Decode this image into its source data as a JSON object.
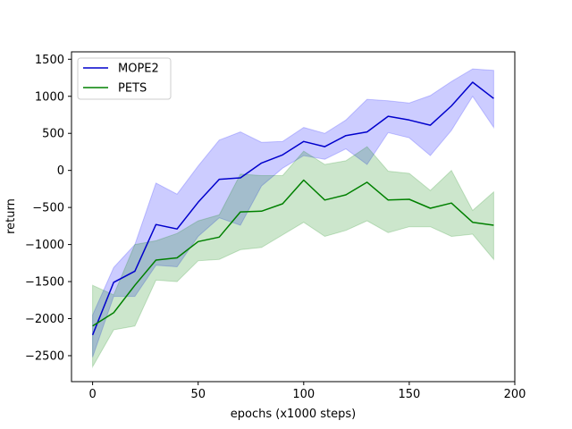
{
  "chart_data": {
    "type": "line",
    "title": "",
    "xlabel": "epochs (x1000 steps)",
    "ylabel": "return",
    "xlim": [
      -10,
      200
    ],
    "ylim": [
      -2850,
      1600
    ],
    "xticks": [
      0,
      50,
      100,
      150,
      200
    ],
    "xtick_labels": [
      "0",
      "50",
      "100",
      "150",
      "200"
    ],
    "yticks": [
      -2500,
      -2000,
      -1500,
      -1000,
      -500,
      0,
      500,
      1000,
      1500
    ],
    "ytick_labels": [
      "−2500",
      "−2000",
      "−1500",
      "−1000",
      "−500",
      "0",
      "500",
      "1000",
      "1500"
    ],
    "grid": false,
    "legend_position": "top-left",
    "x": [
      0,
      10,
      20,
      30,
      40,
      50,
      60,
      70,
      80,
      90,
      100,
      110,
      120,
      130,
      140,
      150,
      160,
      170,
      180,
      190
    ],
    "series": [
      {
        "name": "MOPE2",
        "color": "#0000cc",
        "fill_color": "#0000ff",
        "values": [
          -2220,
          -1510,
          -1360,
          -730,
          -790,
          -430,
          -120,
          -100,
          100,
          210,
          390,
          320,
          470,
          520,
          730,
          680,
          610,
          870,
          1190,
          970
        ],
        "upper": [
          -1950,
          -1310,
          -1000,
          -170,
          -320,
          60,
          410,
          520,
          380,
          390,
          580,
          500,
          680,
          960,
          940,
          910,
          1010,
          1200,
          1370,
          1350
        ],
        "lower": [
          -2520,
          -1700,
          -1700,
          -1280,
          -1300,
          -890,
          -640,
          -740,
          -210,
          30,
          200,
          150,
          290,
          80,
          510,
          440,
          200,
          540,
          1000,
          580
        ]
      },
      {
        "name": "PETS",
        "color": "#008000",
        "fill_color": "#008000",
        "values": [
          -2100,
          -1920,
          -1550,
          -1210,
          -1180,
          -960,
          -900,
          -560,
          -550,
          -450,
          -130,
          -400,
          -330,
          -160,
          -400,
          -390,
          -510,
          -440,
          -700,
          -740
        ],
        "upper": [
          -1550,
          -1680,
          -1000,
          -950,
          -850,
          -680,
          -600,
          -50,
          -70,
          -70,
          260,
          80,
          130,
          320,
          -10,
          -40,
          -270,
          0,
          -540,
          -290
        ],
        "lower": [
          -2650,
          -2150,
          -2100,
          -1480,
          -1500,
          -1220,
          -1200,
          -1070,
          -1040,
          -870,
          -700,
          -890,
          -810,
          -680,
          -840,
          -760,
          -760,
          -890,
          -860,
          -1200
        ]
      }
    ]
  }
}
